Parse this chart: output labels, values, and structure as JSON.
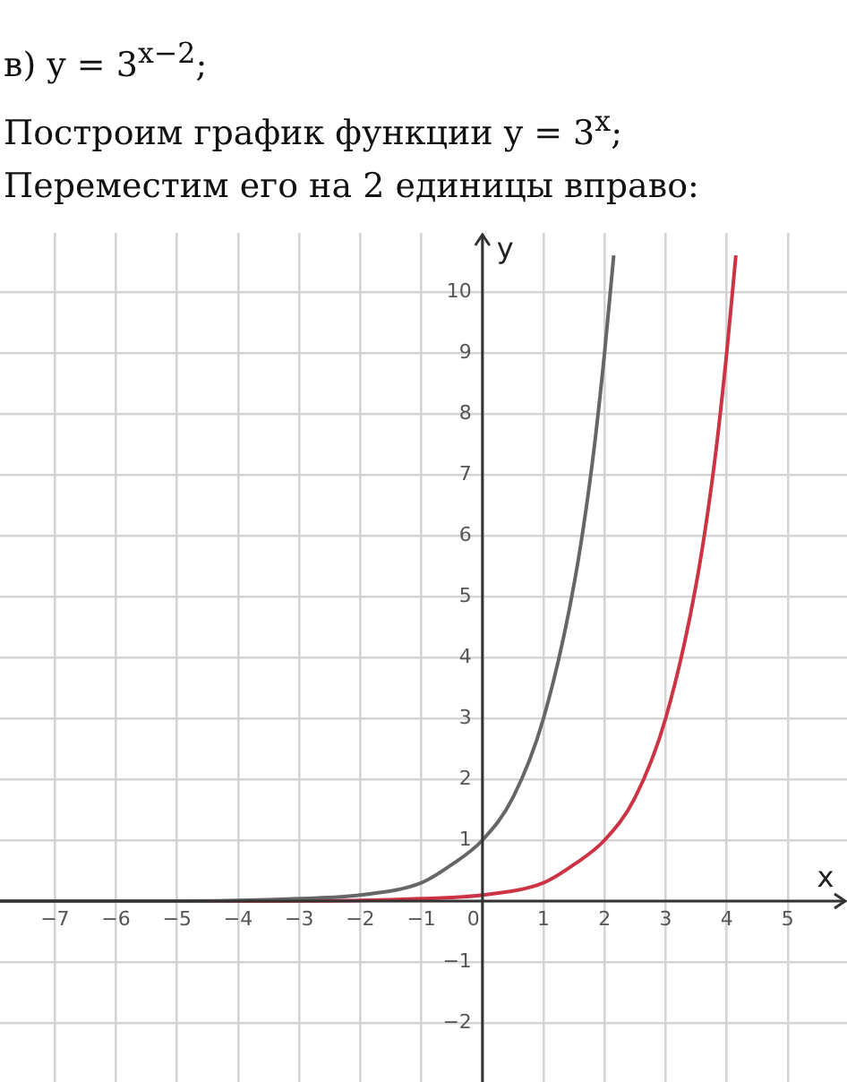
{
  "chart_data": {
    "type": "line",
    "title": "в) y = 3$^{x−2}$;",
    "annotations": [
      "Построим график функции y = 3$^{x}$;",
      "Переместим его на 2 единицы вправо:"
    ],
    "xlabel": "x",
    "ylabel": "y",
    "series": [
      {
        "color": "#666666",
        "x": [
          -7.9,
          -6,
          -4,
          -3,
          -2,
          -1,
          -0.5,
          0,
          0.5,
          1,
          1.5,
          1.8,
          2,
          2.15
        ],
        "values": [
          0,
          0,
          0.01,
          0.04,
          0.1,
          0.3,
          0.6,
          1,
          1.7,
          3,
          5.2,
          7.2,
          9,
          10.6
        ]
      },
      {
        "color": "#cc3344",
        "x": [
          -7.9,
          -4,
          -2,
          -1,
          0,
          1,
          1.5,
          2,
          2.5,
          3,
          3.5,
          3.8,
          4,
          4.15
        ],
        "values": [
          0,
          0,
          0.01,
          0.04,
          0.1,
          0.3,
          0.6,
          1,
          1.7,
          3,
          5.2,
          7.2,
          9,
          10.6
        ]
      }
    ],
    "xlim": [
      -7.9,
      5.97
    ],
    "ylim": [
      -2.97,
      10.97
    ],
    "xticks": [
      -7,
      -6,
      -5,
      -4,
      -3,
      -2,
      -1,
      0,
      1,
      2,
      3,
      4,
      5
    ],
    "yticks": [
      -2,
      -1,
      {
        "value": 0,
        "label": null
      },
      1,
      2,
      3,
      4,
      5,
      6,
      7,
      8,
      9,
      10
    ],
    "grid": true,
    "legend": false,
    "marker": "none",
    "line_style": "solid"
  }
}
